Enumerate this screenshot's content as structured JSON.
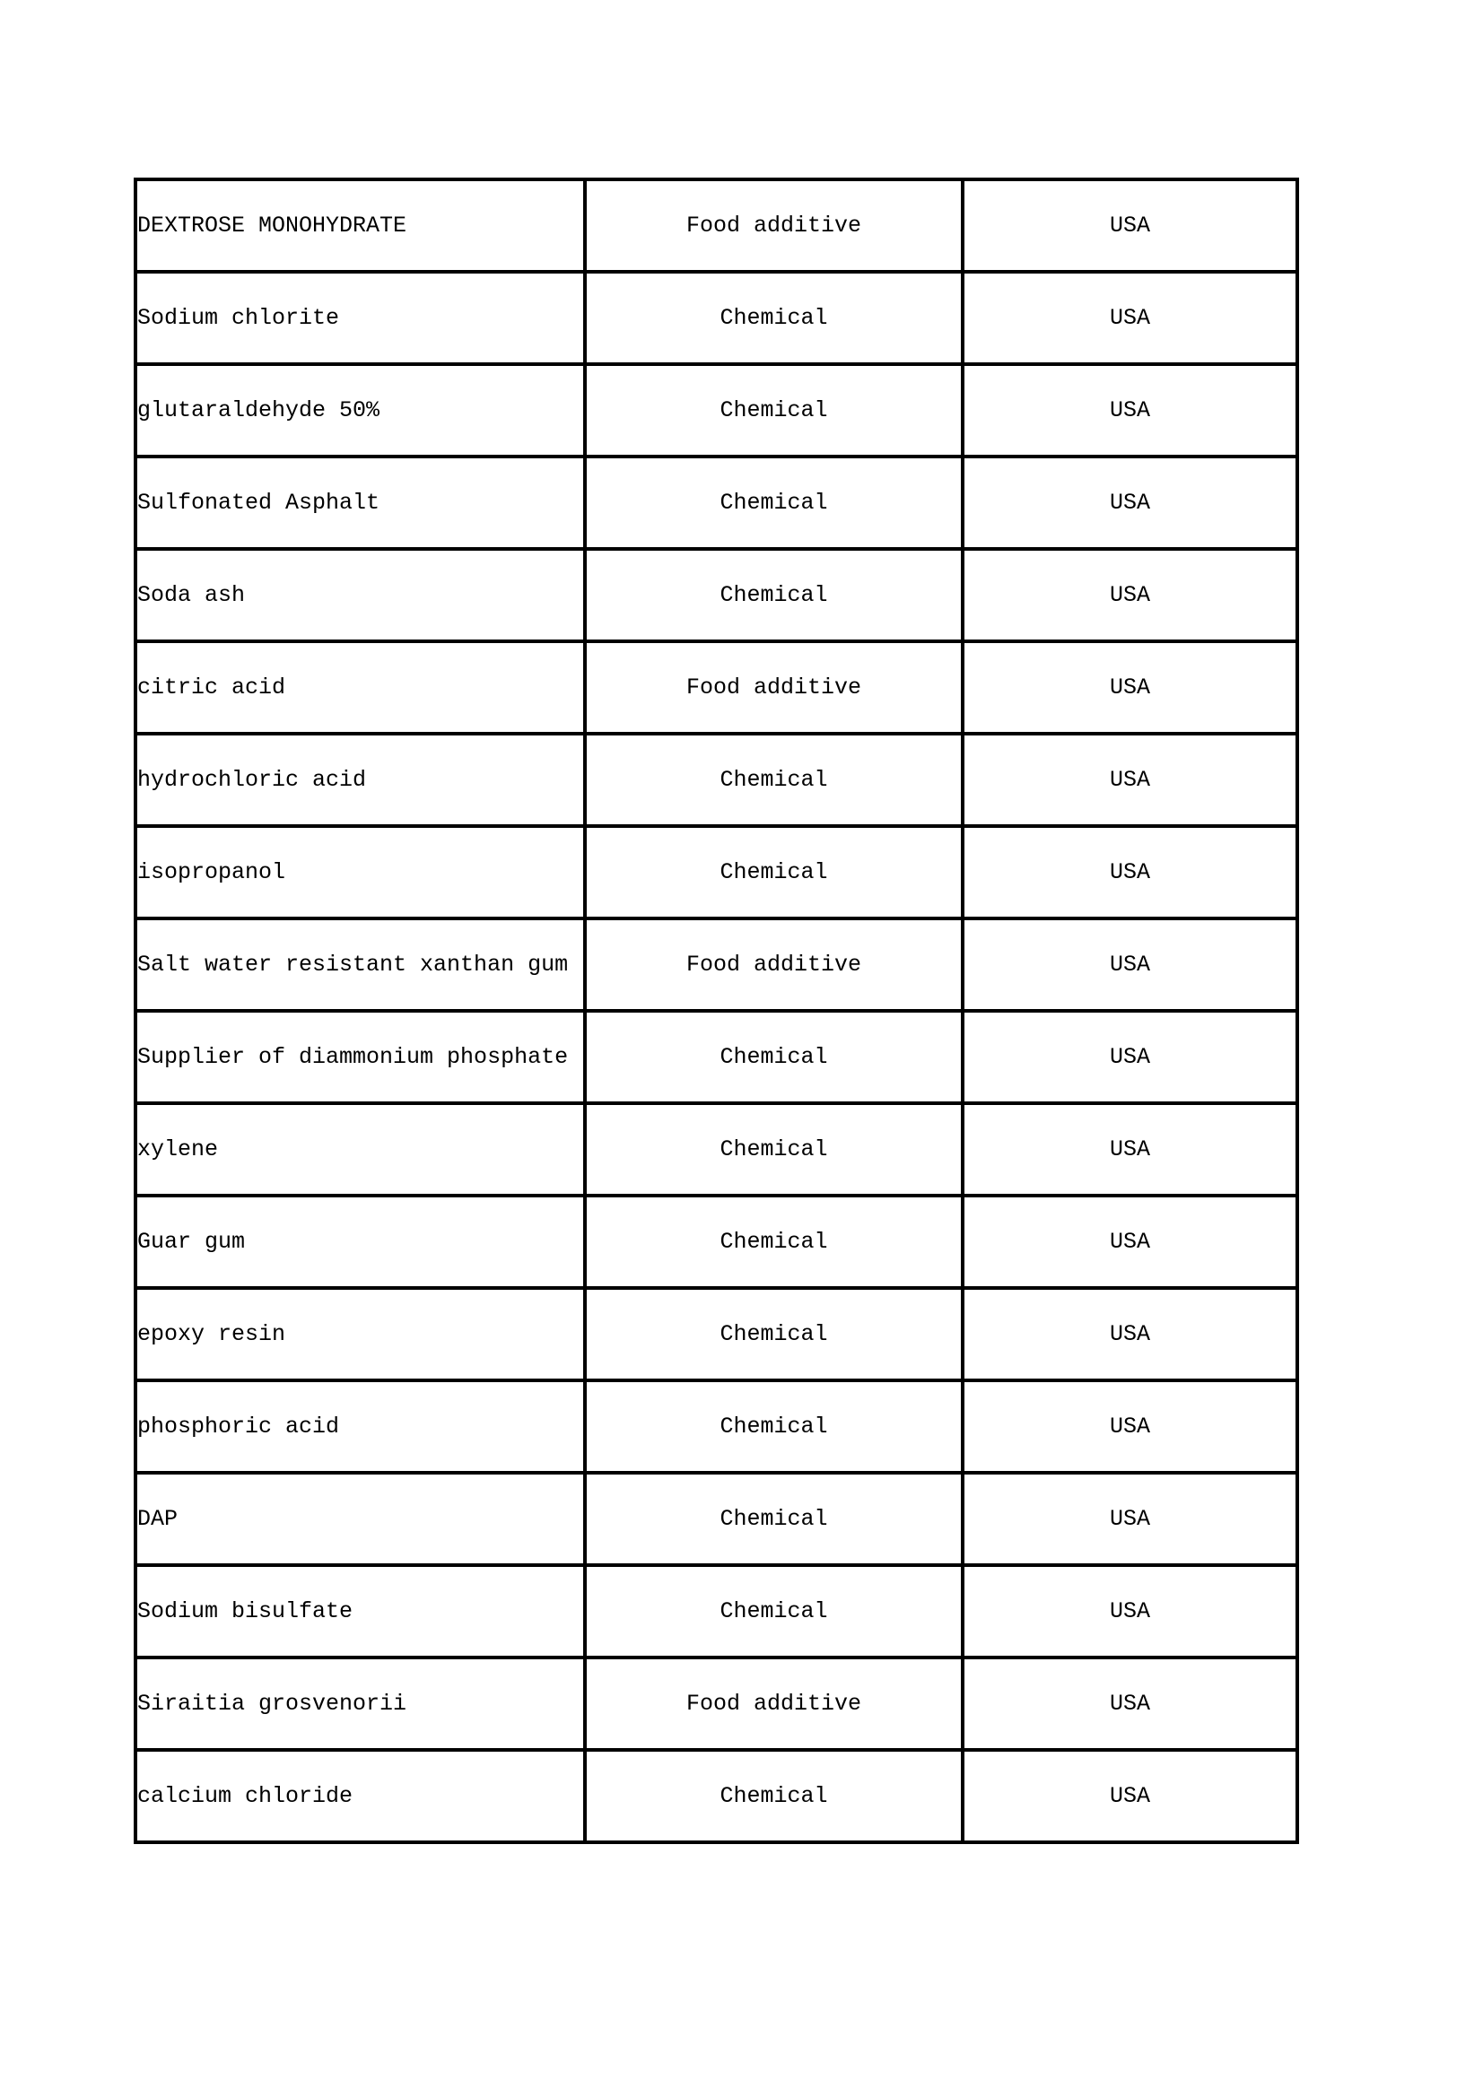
{
  "document": {
    "background": "#ffffff",
    "table": {
      "border_color": "#000000",
      "column_keys": [
        "product",
        "category",
        "country"
      ],
      "rows": [
        {
          "product": "DEXTROSE MONOHYDRATE",
          "category": "Food additive",
          "country": "USA"
        },
        {
          "product": "Sodium chlorite",
          "category": "Chemical",
          "country": "USA"
        },
        {
          "product": "glutaraldehyde 50%",
          "category": "Chemical",
          "country": "USA"
        },
        {
          "product": "Sulfonated Asphalt",
          "category": "Chemical",
          "country": "USA"
        },
        {
          "product": "Soda ash",
          "category": "Chemical",
          "country": "USA"
        },
        {
          "product": "citric acid",
          "category": "Food additive",
          "country": "USA"
        },
        {
          "product": "hydrochloric acid",
          "category": "Chemical",
          "country": "USA"
        },
        {
          "product": "isopropanol",
          "category": "Chemical",
          "country": "USA"
        },
        {
          "product": "Salt water resistant xanthan gum",
          "category": "Food additive",
          "country": "USA"
        },
        {
          "product": "Supplier of diammonium phosphate",
          "category": "Chemical",
          "country": "USA"
        },
        {
          "product": "xylene",
          "category": "Chemical",
          "country": "USA"
        },
        {
          "product": "Guar gum",
          "category": "Chemical",
          "country": "USA"
        },
        {
          "product": "epoxy resin",
          "category": "Chemical",
          "country": "USA"
        },
        {
          "product": "phosphoric acid",
          "category": "Chemical",
          "country": "USA"
        },
        {
          "product": "DAP",
          "category": "Chemical",
          "country": "USA"
        },
        {
          "product": "Sodium bisulfate",
          "category": "Chemical",
          "country": "USA"
        },
        {
          "product": "Siraitia grosvenorii",
          "category": "Food additive",
          "country": "USA"
        },
        {
          "product": "calcium chloride",
          "category": "Chemical",
          "country": "USA"
        }
      ]
    }
  }
}
